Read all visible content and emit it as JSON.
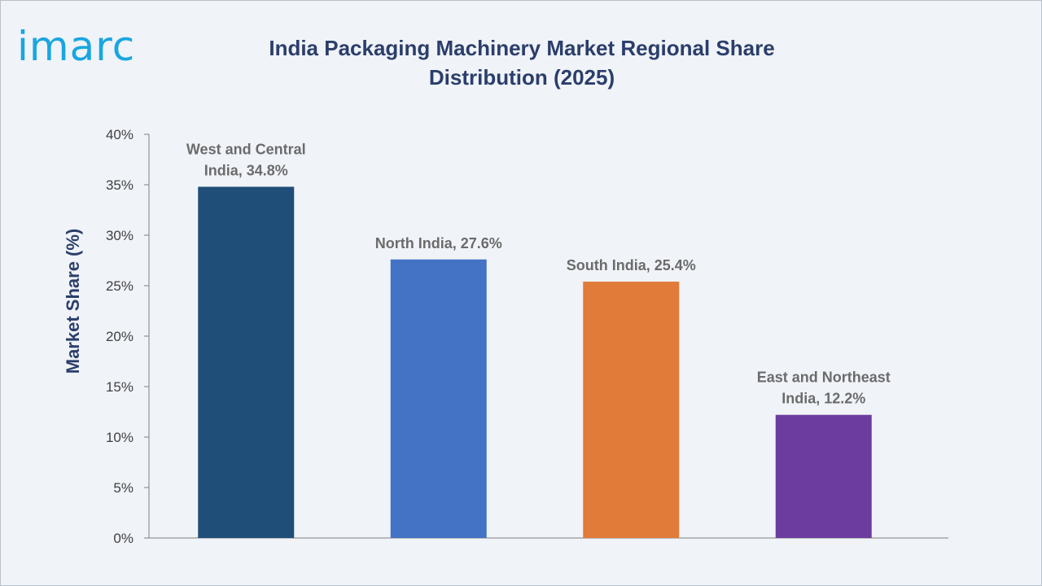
{
  "brand": {
    "logo_text": "imarc",
    "logo_color": "#19a6e0"
  },
  "chart_data": {
    "type": "bar",
    "title": "India Packaging Machinery Market Regional Share Distribution (2025)",
    "ylabel": "Market Share (%)",
    "xlabel": "",
    "ylim": [
      0,
      40
    ],
    "ytick_labels": [
      "0%",
      "5%",
      "10%",
      "15%",
      "20%",
      "25%",
      "30%",
      "35%",
      "40%"
    ],
    "categories": [
      "West and Central India",
      "North India",
      "South India",
      "East and Northeast India"
    ],
    "values": [
      34.8,
      27.6,
      25.4,
      12.2
    ],
    "colors": [
      "#1f4e79",
      "#4472c4",
      "#e07b39",
      "#6c3d9e"
    ],
    "data_labels": [
      [
        "West and Central",
        "India, 34.8%"
      ],
      [
        "North India, 27.6%"
      ],
      [
        "South India, 25.4%"
      ],
      [
        "East and Northeast",
        "India, 12.2%"
      ]
    ],
    "grid": false,
    "legend": "none"
  }
}
